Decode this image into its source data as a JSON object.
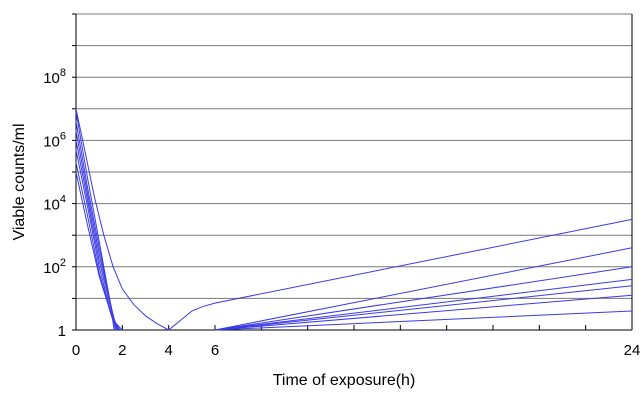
{
  "chart_data": {
    "type": "line",
    "title": "",
    "xlabel": "Time of exposure(h)",
    "ylabel": "Viable counts/ml",
    "xlim": [
      0,
      24
    ],
    "ylim": [
      0,
      10
    ],
    "y_scale": "log10",
    "x_ticks": [
      {
        "value": 0,
        "label": "0"
      },
      {
        "value": 2,
        "label": "2"
      },
      {
        "value": 4,
        "label": "4"
      },
      {
        "value": 6,
        "label": "6"
      },
      {
        "value": 24,
        "label": "24"
      }
    ],
    "x_minor_ticks": [
      8,
      10,
      12,
      14,
      16,
      18,
      20,
      22
    ],
    "y_ticks": [
      {
        "value": 0,
        "label": "1",
        "exp": ""
      },
      {
        "value": 2,
        "label": "10",
        "exp": "2"
      },
      {
        "value": 4,
        "label": "10",
        "exp": "4"
      },
      {
        "value": 6,
        "label": "10",
        "exp": "6"
      },
      {
        "value": 8,
        "label": "10",
        "exp": "8"
      }
    ],
    "grid_y": [
      1,
      2,
      3,
      4,
      5,
      6,
      7,
      8,
      9
    ],
    "line_color": "#3a3ae6",
    "series": [
      {
        "points": [
          [
            0,
            6.9
          ],
          [
            0.5,
            4.8
          ],
          [
            1.0,
            2.8
          ],
          [
            1.4,
            1.2
          ],
          [
            1.65,
            0.0
          ]
        ]
      },
      {
        "points": [
          [
            0,
            6.6
          ],
          [
            0.5,
            4.5
          ],
          [
            1.0,
            2.6
          ],
          [
            1.45,
            1.0
          ],
          [
            1.7,
            0.0
          ]
        ]
      },
      {
        "points": [
          [
            0,
            6.3
          ],
          [
            0.5,
            4.3
          ],
          [
            1.0,
            2.4
          ],
          [
            1.5,
            0.8
          ],
          [
            1.75,
            0.0
          ]
        ]
      },
      {
        "points": [
          [
            0,
            6.0
          ],
          [
            0.5,
            4.1
          ],
          [
            1.0,
            2.2
          ],
          [
            1.5,
            0.7
          ],
          [
            1.8,
            0.0
          ]
        ]
      },
      {
        "points": [
          [
            0,
            5.7
          ],
          [
            0.5,
            3.9
          ],
          [
            1.0,
            2.0
          ],
          [
            1.5,
            0.55
          ],
          [
            1.85,
            0.0
          ]
        ]
      },
      {
        "points": [
          [
            0,
            5.3
          ],
          [
            0.5,
            3.6
          ],
          [
            1.0,
            1.8
          ],
          [
            1.55,
            0.4
          ],
          [
            1.9,
            0.0
          ]
        ]
      },
      {
        "points": [
          [
            0,
            5.0
          ],
          [
            0.5,
            3.3
          ],
          [
            1.0,
            1.7
          ],
          [
            1.6,
            0.3
          ],
          [
            2.0,
            0.0
          ]
        ]
      },
      {
        "points": [
          [
            0,
            7.0
          ],
          [
            0.4,
            5.6
          ],
          [
            0.8,
            4.2
          ],
          [
            1.2,
            3.0
          ],
          [
            1.6,
            2.0
          ],
          [
            2.0,
            1.3
          ],
          [
            2.5,
            0.8
          ],
          [
            3.0,
            0.45
          ],
          [
            3.5,
            0.2
          ],
          [
            4.0,
            0.0
          ],
          [
            4.5,
            0.3
          ],
          [
            5.0,
            0.6
          ],
          [
            5.5,
            0.75
          ],
          [
            6.0,
            0.85
          ],
          [
            24,
            3.5
          ]
        ]
      },
      {
        "points": [
          [
            6,
            0.0
          ],
          [
            24,
            2.6
          ]
        ]
      },
      {
        "points": [
          [
            6,
            0.0
          ],
          [
            24,
            2.0
          ]
        ]
      },
      {
        "points": [
          [
            6,
            0.0
          ],
          [
            24,
            1.6
          ]
        ]
      },
      {
        "points": [
          [
            6,
            0.0
          ],
          [
            24,
            1.4
          ]
        ]
      },
      {
        "points": [
          [
            6,
            0.0
          ],
          [
            24,
            1.1
          ]
        ]
      },
      {
        "points": [
          [
            6,
            0.0
          ],
          [
            24,
            0.6
          ]
        ]
      }
    ]
  }
}
